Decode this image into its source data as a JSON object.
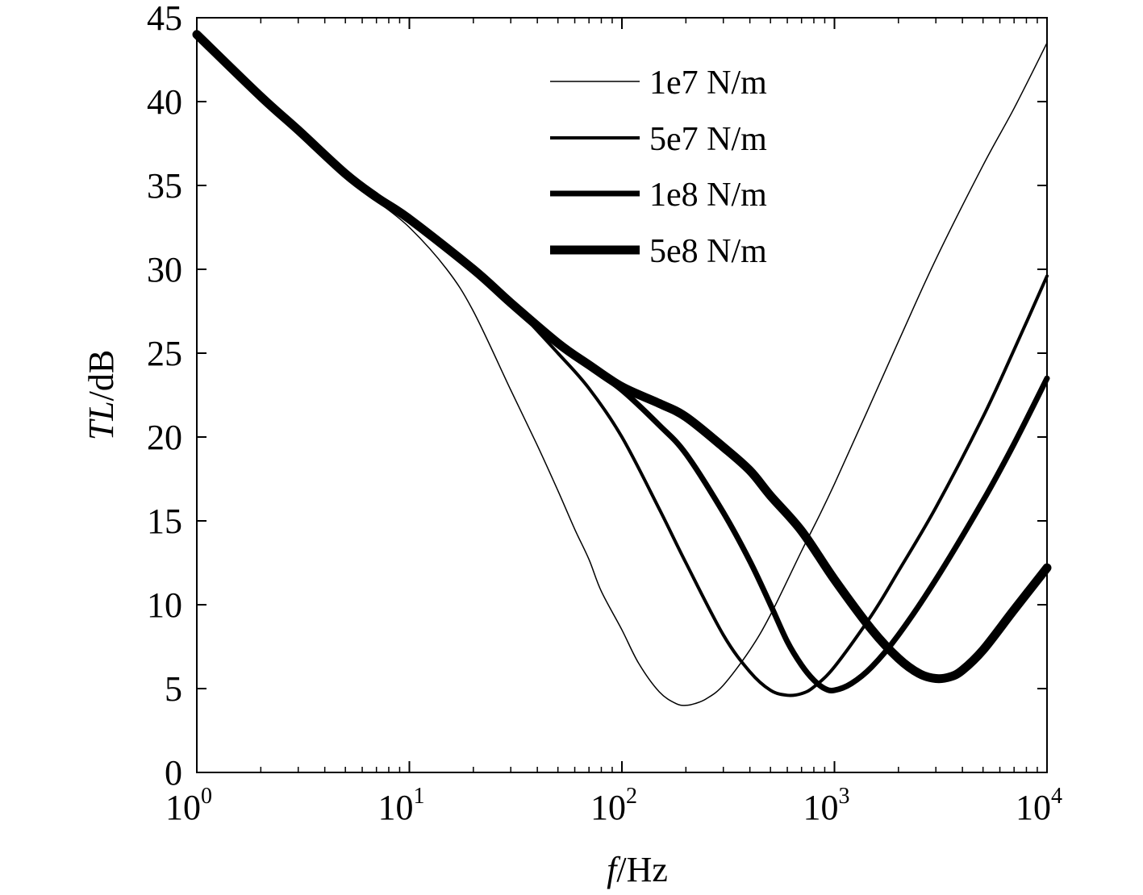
{
  "chart_data": {
    "type": "line",
    "title": "",
    "xlabel": {
      "italic": "f",
      "rest": "/Hz"
    },
    "ylabel": {
      "italic": "TL",
      "rest": "/dB"
    },
    "x_scale": "log",
    "xlim": [
      1,
      10000
    ],
    "ylim": [
      0,
      45
    ],
    "x_ticks": [
      {
        "value": 1,
        "base": "10",
        "exp": "0"
      },
      {
        "value": 10,
        "base": "10",
        "exp": "1"
      },
      {
        "value": 100,
        "base": "10",
        "exp": "2"
      },
      {
        "value": 1000,
        "base": "10",
        "exp": "3"
      },
      {
        "value": 10000,
        "base": "10",
        "exp": "4"
      }
    ],
    "y_ticks": [
      0,
      5,
      10,
      15,
      20,
      25,
      30,
      35,
      40,
      45
    ],
    "grid": false,
    "legend_position": "top-right",
    "line_color": "#000000",
    "series": [
      {
        "name": "1e7 N/m",
        "stroke": 1.5,
        "x": [
          1,
          2,
          3,
          5,
          7,
          10,
          15,
          20,
          30,
          40,
          50,
          60,
          70,
          80,
          100,
          120,
          150,
          180,
          200,
          220,
          250,
          300,
          400,
          500,
          700,
          1000,
          2000,
          3000,
          5000,
          7000,
          10000
        ],
        "y": [
          44,
          40.3,
          38.3,
          35.7,
          34.1,
          32.5,
          30,
          27.5,
          22.8,
          19.5,
          16.8,
          14.5,
          12.7,
          10.8,
          8.5,
          6.5,
          4.8,
          4.1,
          4,
          4.1,
          4.4,
          5.2,
          7.3,
          9.4,
          13.2,
          17.2,
          25.7,
          30.6,
          36.2,
          39.6,
          43.5
        ]
      },
      {
        "name": "5e7 N/m",
        "stroke": 4,
        "x": [
          1,
          2,
          3,
          5,
          7,
          10,
          20,
          30,
          50,
          70,
          100,
          150,
          200,
          300,
          400,
          500,
          600,
          700,
          800,
          1000,
          1500,
          2000,
          3000,
          5000,
          7000,
          10000
        ],
        "y": [
          44,
          40.3,
          38.3,
          35.7,
          34.3,
          33,
          30,
          28,
          25,
          22.9,
          20,
          15.7,
          12.5,
          8.2,
          6,
          4.9,
          4.6,
          4.7,
          5.1,
          6.3,
          9.4,
          12,
          15.8,
          21.2,
          25.2,
          29.6
        ]
      },
      {
        "name": "1e8 N/m",
        "stroke": 7,
        "x": [
          1,
          2,
          3,
          5,
          7,
          10,
          20,
          30,
          50,
          70,
          100,
          150,
          200,
          300,
          400,
          500,
          600,
          700,
          800,
          900,
          1000,
          1200,
          1500,
          2000,
          3000,
          5000,
          7000,
          10000
        ],
        "y": [
          44,
          40.3,
          38.3,
          35.7,
          34.3,
          33,
          30,
          28,
          25.5,
          24.2,
          22.8,
          20.7,
          19,
          15.5,
          12.6,
          10,
          7.8,
          6.4,
          5.5,
          5,
          4.9,
          5.3,
          6.3,
          8.2,
          11.5,
          16.2,
          19.6,
          23.5
        ]
      },
      {
        "name": "5e8 N/m",
        "stroke": 11,
        "x": [
          1,
          2,
          3,
          5,
          7,
          10,
          20,
          30,
          50,
          70,
          100,
          150,
          200,
          300,
          400,
          500,
          700,
          1000,
          1500,
          2000,
          2500,
          3000,
          3500,
          4000,
          5000,
          7000,
          10000
        ],
        "y": [
          44,
          40.3,
          38.3,
          35.7,
          34.3,
          33,
          30,
          28,
          25.6,
          24.3,
          23,
          22,
          21.2,
          19.4,
          18,
          16.5,
          14.4,
          11.5,
          8.5,
          6.8,
          5.9,
          5.6,
          5.7,
          6.1,
          7.3,
          9.7,
          12.2
        ]
      }
    ]
  }
}
